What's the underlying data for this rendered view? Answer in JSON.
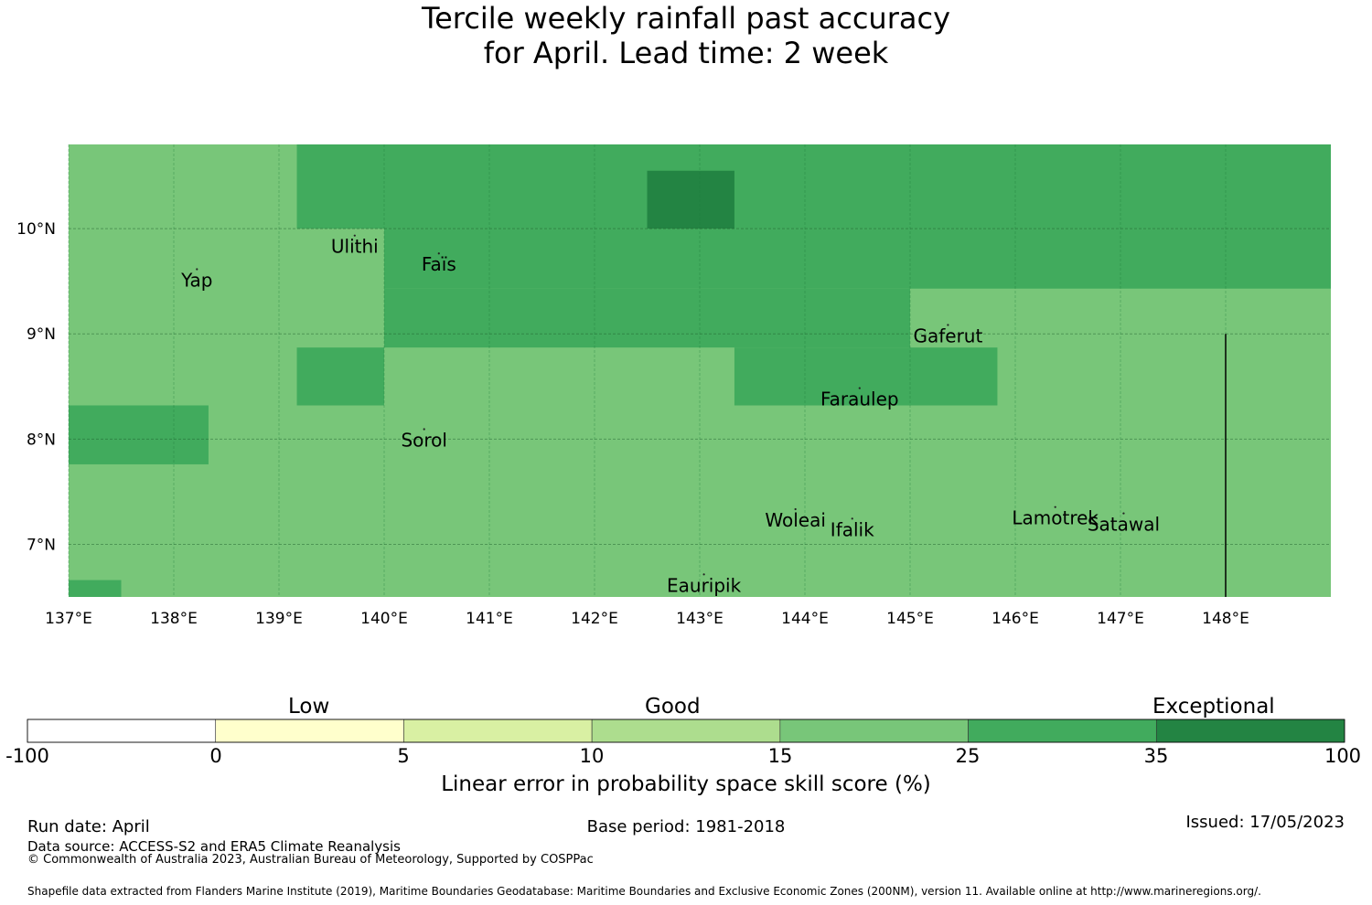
{
  "title_line1": "Tercile weekly rainfall past accuracy",
  "title_line2": "for April. Lead time: 2 week",
  "map": {
    "lon_range": [
      137.0,
      149.0
    ],
    "lat_range": [
      6.5,
      10.8
    ],
    "lon_ticks": [
      {
        "value": 137,
        "label": "137°E"
      },
      {
        "value": 138,
        "label": "138°E"
      },
      {
        "value": 139,
        "label": "139°E"
      },
      {
        "value": 140,
        "label": "140°E"
      },
      {
        "value": 141,
        "label": "141°E"
      },
      {
        "value": 142,
        "label": "142°E"
      },
      {
        "value": 143,
        "label": "143°E"
      },
      {
        "value": 144,
        "label": "144°E"
      },
      {
        "value": 145,
        "label": "145°E"
      },
      {
        "value": 146,
        "label": "146°E"
      },
      {
        "value": 147,
        "label": "147°E"
      },
      {
        "value": 148,
        "label": "148°E"
      }
    ],
    "lat_ticks": [
      {
        "value": 10,
        "label": "10°N"
      },
      {
        "value": 9,
        "label": "9°N"
      },
      {
        "value": 8,
        "label": "8°N"
      },
      {
        "value": 7,
        "label": "7°N"
      }
    ],
    "background_color": "#78c679",
    "regions": [
      {
        "lon": [
          139.17,
          149.0
        ],
        "lat": [
          10.0,
          10.8
        ],
        "color": "#41ab5d"
      },
      {
        "lon": [
          140.0,
          149.0
        ],
        "lat": [
          9.43,
          10.0
        ],
        "color": "#41ab5d"
      },
      {
        "lon": [
          140.0,
          145.0
        ],
        "lat": [
          8.87,
          9.43
        ],
        "color": "#41ab5d"
      },
      {
        "lon": [
          142.5,
          143.33
        ],
        "lat": [
          10.0,
          10.55
        ],
        "color": "#238443"
      },
      {
        "lon": [
          139.17,
          140.0
        ],
        "lat": [
          8.32,
          8.87
        ],
        "color": "#41ab5d"
      },
      {
        "lon": [
          143.33,
          145.83
        ],
        "lat": [
          8.32,
          8.87
        ],
        "color": "#41ab5d"
      },
      {
        "lon": [
          137.0,
          138.33
        ],
        "lat": [
          7.76,
          8.32
        ],
        "color": "#41ab5d"
      },
      {
        "lon": [
          137.0,
          137.5
        ],
        "lat": [
          6.5,
          6.66
        ],
        "color": "#41ab5d"
      }
    ],
    "boundary_line": {
      "lon": 148.0,
      "lat": [
        6.5,
        9.0
      ]
    },
    "places": [
      {
        "name": "Yap",
        "lon": 138.22,
        "lat": 9.51
      },
      {
        "name": "Ulithi",
        "lon": 139.72,
        "lat": 9.83
      },
      {
        "name": "Faïs",
        "lon": 140.52,
        "lat": 9.66
      },
      {
        "name": "Gaferut",
        "lon": 145.36,
        "lat": 8.98
      },
      {
        "name": "Faraulep",
        "lon": 144.52,
        "lat": 8.38
      },
      {
        "name": "Sorol",
        "lon": 140.38,
        "lat": 7.99
      },
      {
        "name": "Woleai",
        "lon": 143.91,
        "lat": 7.23
      },
      {
        "name": "Ifalik",
        "lon": 144.45,
        "lat": 7.14
      },
      {
        "name": "Lamotrek",
        "lon": 146.38,
        "lat": 7.25
      },
      {
        "name": "Satawal",
        "lon": 147.03,
        "lat": 7.19
      },
      {
        "name": "Eauripik",
        "lon": 143.04,
        "lat": 6.61
      }
    ]
  },
  "colorbar": {
    "categories": [
      "Low",
      "Good",
      "Exceptional"
    ],
    "bins": [
      {
        "from": -100,
        "to": 0,
        "color": "#ffffff"
      },
      {
        "from": 0,
        "to": 5,
        "color": "#ffffcc"
      },
      {
        "from": 5,
        "to": 10,
        "color": "#d9f0a3"
      },
      {
        "from": 10,
        "to": 15,
        "color": "#addd8e"
      },
      {
        "from": 15,
        "to": 25,
        "color": "#78c679"
      },
      {
        "from": 25,
        "to": 35,
        "color": "#41ab5d"
      },
      {
        "from": 35,
        "to": 100,
        "color": "#238443"
      }
    ],
    "tick_labels": [
      "-100",
      "0",
      "5",
      "10",
      "15",
      "25",
      "35",
      "100"
    ],
    "label": "Linear error in probability space skill score (%)"
  },
  "footer": {
    "run_date": "Run date: April",
    "base_period": "Base period: 1981-2018",
    "issued": "Issued: 17/05/2023",
    "data_source": "Data source: ACCESS-S2 and ERA5 Climate Reanalysis",
    "copyright": "© Commonwealth of Australia 2023, Australian Bureau of Meteorology, Supported by COSPPac",
    "shapefile": "Shapefile data extracted from Flanders Marine Institute (2019), Maritime Boundaries Geodatabase: Maritime Boundaries and Exclusive Economic Zones (200NM), version 11. Available online at http://www.marineregions.org/."
  }
}
